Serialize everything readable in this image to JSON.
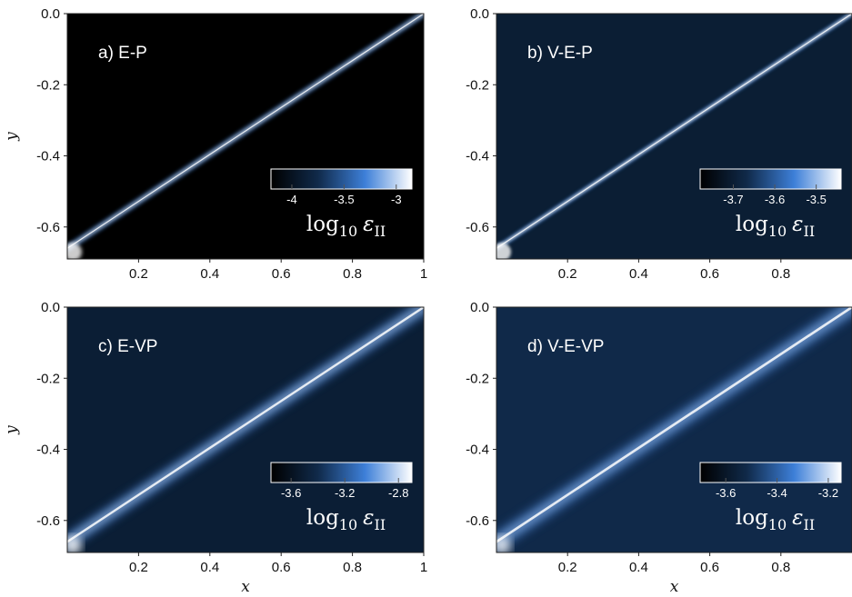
{
  "chart_data": [
    {
      "type": "heatmap",
      "title": "a) E-P",
      "xlabel": "",
      "ylabel": "y",
      "xlim": [
        0,
        1
      ],
      "ylim": [
        -0.69,
        0.0
      ],
      "xticks": [
        0.2,
        0.4,
        0.6,
        0.8,
        1
      ],
      "xtick_labels": [
        "0.2",
        "0.4",
        "0.6",
        "0.8",
        "1"
      ],
      "yticks": [
        0.0,
        -0.2,
        -0.4,
        -0.6
      ],
      "ytick_labels": [
        "0.0",
        "-0.2",
        "-0.4",
        "-0.6"
      ],
      "colorbar": {
        "label": "log10 εII",
        "ticks": [
          -4,
          -3.5,
          -3
        ],
        "tick_labels": [
          "-4",
          "-3.5",
          "-3"
        ],
        "range": [
          -4.2,
          -2.85
        ]
      },
      "shear_band": {
        "start": [
          0.0,
          -0.66
        ],
        "end": [
          1.0,
          0.0
        ],
        "peak": -2.9,
        "width": 0.008
      },
      "background": -4.25,
      "colormap": [
        "#000000",
        "#102a4a",
        "#3d7fd8",
        "#ffffff"
      ]
    },
    {
      "type": "heatmap",
      "title": "b) V-E-P",
      "xlabel": "",
      "ylabel": "",
      "xlim": [
        0,
        1
      ],
      "ylim": [
        -0.69,
        0.0
      ],
      "xticks": [
        0.2,
        0.4,
        0.6,
        0.8
      ],
      "xtick_labels": [
        "0.2",
        "0.4",
        "0.6",
        "0.8"
      ],
      "yticks": [
        0.0,
        -0.2,
        -0.4,
        -0.6
      ],
      "ytick_labels": [
        "0.0",
        "-0.2",
        "-0.4",
        "-0.6"
      ],
      "colorbar": {
        "label": "log10 εII",
        "ticks": [
          -3.7,
          -3.6,
          -3.5
        ],
        "tick_labels": [
          "-3.7",
          "-3.6",
          "-3.5"
        ],
        "range": [
          -3.78,
          -3.44
        ]
      },
      "shear_band": {
        "start": [
          0.0,
          -0.66
        ],
        "end": [
          1.0,
          0.0
        ],
        "peak": -3.44,
        "width": 0.006
      },
      "background": -3.7,
      "colormap": [
        "#000000",
        "#102a4a",
        "#3d7fd8",
        "#ffffff"
      ]
    },
    {
      "type": "heatmap",
      "title": "c) E-VP",
      "xlabel": "x",
      "ylabel": "y",
      "xlim": [
        0,
        1
      ],
      "ylim": [
        -0.69,
        0.0
      ],
      "xticks": [
        0.2,
        0.4,
        0.6,
        0.8,
        1
      ],
      "xtick_labels": [
        "0.2",
        "0.4",
        "0.6",
        "0.8",
        "1"
      ],
      "yticks": [
        0.0,
        -0.2,
        -0.4,
        -0.6
      ],
      "ytick_labels": [
        "0.0",
        "-0.2",
        "-0.4",
        "-0.6"
      ],
      "colorbar": {
        "label": "log10 εII",
        "ticks": [
          -3.6,
          -3.2,
          -2.8
        ],
        "tick_labels": [
          "-3.6",
          "-3.2",
          "-2.8"
        ],
        "range": [
          -3.75,
          -2.7
        ]
      },
      "shear_band": {
        "start": [
          0.0,
          -0.66
        ],
        "end": [
          1.0,
          0.0
        ],
        "peak": -2.85,
        "width": 0.018
      },
      "background": -3.5,
      "colormap": [
        "#000000",
        "#102a4a",
        "#3d7fd8",
        "#ffffff"
      ]
    },
    {
      "type": "heatmap",
      "title": "d) V-E-VP",
      "xlabel": "x",
      "ylabel": "",
      "xlim": [
        0,
        1
      ],
      "ylim": [
        -0.69,
        0.0
      ],
      "xticks": [
        0.2,
        0.4,
        0.6,
        0.8
      ],
      "xtick_labels": [
        "0.2",
        "0.4",
        "0.6",
        "0.8"
      ],
      "yticks": [
        0.0,
        -0.2,
        -0.4,
        -0.6
      ],
      "ytick_labels": [
        "0.0",
        "-0.2",
        "-0.4",
        "-0.6"
      ],
      "colorbar": {
        "label": "log10 εII",
        "ticks": [
          -3.6,
          -3.4,
          -3.2
        ],
        "tick_labels": [
          "-3.6",
          "-3.4",
          "-3.2"
        ],
        "range": [
          -3.7,
          -3.15
        ]
      },
      "shear_band": {
        "start": [
          0.0,
          -0.66
        ],
        "end": [
          1.0,
          0.0
        ],
        "peak": -3.25,
        "width": 0.02
      },
      "background": -3.52,
      "colormap": [
        "#000000",
        "#102a4a",
        "#3d7fd8",
        "#ffffff"
      ]
    }
  ]
}
